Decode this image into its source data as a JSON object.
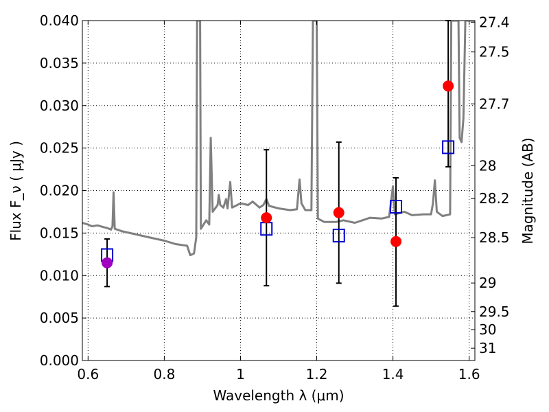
{
  "chart_data": {
    "type": "scatter",
    "title": "",
    "xlabel": "Wavelength  λ (μm)",
    "ylabel": "Flux  F_ν  ( μJy )",
    "ylabel_right": "Magnitude (AB)",
    "xlim": [
      0.585,
      1.615
    ],
    "ylim": [
      0.0,
      0.04
    ],
    "grid": true,
    "x_ticks": [
      {
        "value": 0.6,
        "label": "0.6"
      },
      {
        "value": 0.8,
        "label": "0.8"
      },
      {
        "value": 1.0,
        "label": "1"
      },
      {
        "value": 1.2,
        "label": "1.2"
      },
      {
        "value": 1.4,
        "label": "1.4"
      },
      {
        "value": 1.6,
        "label": "1.6"
      }
    ],
    "y_ticks": [
      {
        "value": 0.0,
        "label": "0.000"
      },
      {
        "value": 0.005,
        "label": "0.005"
      },
      {
        "value": 0.01,
        "label": "0.010"
      },
      {
        "value": 0.015,
        "label": "0.015"
      },
      {
        "value": 0.02,
        "label": "0.020"
      },
      {
        "value": 0.025,
        "label": "0.025"
      },
      {
        "value": 0.03,
        "label": "0.030"
      },
      {
        "value": 0.035,
        "label": "0.035"
      },
      {
        "value": 0.04,
        "label": "0.040"
      }
    ],
    "right_ticks": [
      {
        "mag": 27.4,
        "label": "27.4"
      },
      {
        "mag": 27.5,
        "label": "27.5"
      },
      {
        "mag": 27.7,
        "label": "27.7"
      },
      {
        "mag": 28.0,
        "label": "28"
      },
      {
        "mag": 28.2,
        "label": "28.2"
      },
      {
        "mag": 28.5,
        "label": "28.5"
      },
      {
        "mag": 29.0,
        "label": "29"
      },
      {
        "mag": 29.5,
        "label": "29.5"
      },
      {
        "mag": 30.0,
        "label": "30"
      },
      {
        "mag": 31.0,
        "label": "31"
      }
    ],
    "series": [
      {
        "kind": "line",
        "color": "#808080",
        "points": [
          [
            0.585,
            0.0162
          ],
          [
            0.6,
            0.016
          ],
          [
            0.61,
            0.0158
          ],
          [
            0.625,
            0.0159
          ],
          [
            0.64,
            0.0157
          ],
          [
            0.65,
            0.0156
          ],
          [
            0.66,
            0.0154
          ],
          [
            0.664,
            0.0158
          ],
          [
            0.667,
            0.0198
          ],
          [
            0.67,
            0.0155
          ],
          [
            0.69,
            0.0152
          ],
          [
            0.72,
            0.0149
          ],
          [
            0.76,
            0.0145
          ],
          [
            0.8,
            0.0141
          ],
          [
            0.83,
            0.0137
          ],
          [
            0.86,
            0.0135
          ],
          [
            0.868,
            0.0124
          ],
          [
            0.878,
            0.0126
          ],
          [
            0.884,
            0.0145
          ],
          [
            0.886,
            0.04
          ],
          [
            0.894,
            0.04
          ],
          [
            0.896,
            0.0155
          ],
          [
            0.91,
            0.0165
          ],
          [
            0.918,
            0.016
          ],
          [
            0.922,
            0.0262
          ],
          [
            0.927,
            0.0175
          ],
          [
            0.935,
            0.018
          ],
          [
            0.94,
            0.0183
          ],
          [
            0.943,
            0.0195
          ],
          [
            0.947,
            0.0183
          ],
          [
            0.955,
            0.018
          ],
          [
            0.962,
            0.019
          ],
          [
            0.966,
            0.0179
          ],
          [
            0.973,
            0.021
          ],
          [
            0.978,
            0.018
          ],
          [
            1.0,
            0.0185
          ],
          [
            1.02,
            0.0183
          ],
          [
            1.032,
            0.0187
          ],
          [
            1.05,
            0.018
          ],
          [
            1.06,
            0.0183
          ],
          [
            1.068,
            0.019
          ],
          [
            1.075,
            0.0182
          ],
          [
            1.1,
            0.0179
          ],
          [
            1.13,
            0.0177
          ],
          [
            1.148,
            0.0178
          ],
          [
            1.155,
            0.0213
          ],
          [
            1.16,
            0.0185
          ],
          [
            1.17,
            0.0177
          ],
          [
            1.186,
            0.0177
          ],
          [
            1.19,
            0.04
          ],
          [
            1.2,
            0.04
          ],
          [
            1.203,
            0.0167
          ],
          [
            1.22,
            0.0163
          ],
          [
            1.25,
            0.0163
          ],
          [
            1.27,
            0.0165
          ],
          [
            1.3,
            0.0162
          ],
          [
            1.32,
            0.0165
          ],
          [
            1.34,
            0.0168
          ],
          [
            1.37,
            0.0167
          ],
          [
            1.39,
            0.0169
          ],
          [
            1.4,
            0.0205
          ],
          [
            1.405,
            0.0172
          ],
          [
            1.43,
            0.0175
          ],
          [
            1.45,
            0.0171
          ],
          [
            1.48,
            0.0172
          ],
          [
            1.5,
            0.0172
          ],
          [
            1.505,
            0.0185
          ],
          [
            1.51,
            0.0212
          ],
          [
            1.515,
            0.0175
          ],
          [
            1.53,
            0.017
          ],
          [
            1.55,
            0.0172
          ],
          [
            1.553,
            0.04
          ],
          [
            1.572,
            0.04
          ],
          [
            1.575,
            0.0262
          ],
          [
            1.58,
            0.0257
          ],
          [
            1.585,
            0.0285
          ],
          [
            1.59,
            0.04
          ],
          [
            1.615,
            0.04
          ]
        ]
      },
      {
        "kind": "error_bars",
        "color": "#000000",
        "points": [
          {
            "x": 0.65,
            "low": 0.0087,
            "high": 0.0143
          },
          {
            "x": 1.068,
            "low": 0.0088,
            "high": 0.0248
          },
          {
            "x": 1.258,
            "low": 0.0091,
            "high": 0.0257
          },
          {
            "x": 1.408,
            "low": 0.0064,
            "high": 0.0215
          },
          {
            "x": 1.545,
            "low": 0.0228,
            "high": 0.04
          }
        ]
      },
      {
        "kind": "open_squares",
        "color": "#0000cc",
        "points": [
          [
            0.65,
            0.0124
          ],
          [
            1.068,
            0.0155
          ],
          [
            1.258,
            0.0147
          ],
          [
            1.408,
            0.0181
          ],
          [
            1.545,
            0.0251
          ]
        ]
      },
      {
        "kind": "filled_circles",
        "color": "#ff0000",
        "points": [
          [
            1.068,
            0.0168
          ],
          [
            1.258,
            0.0174
          ],
          [
            1.408,
            0.014
          ],
          [
            1.545,
            0.0323
          ]
        ]
      },
      {
        "kind": "filled_circles",
        "color": "#a000c0",
        "points": [
          [
            0.65,
            0.0115
          ]
        ]
      }
    ]
  }
}
